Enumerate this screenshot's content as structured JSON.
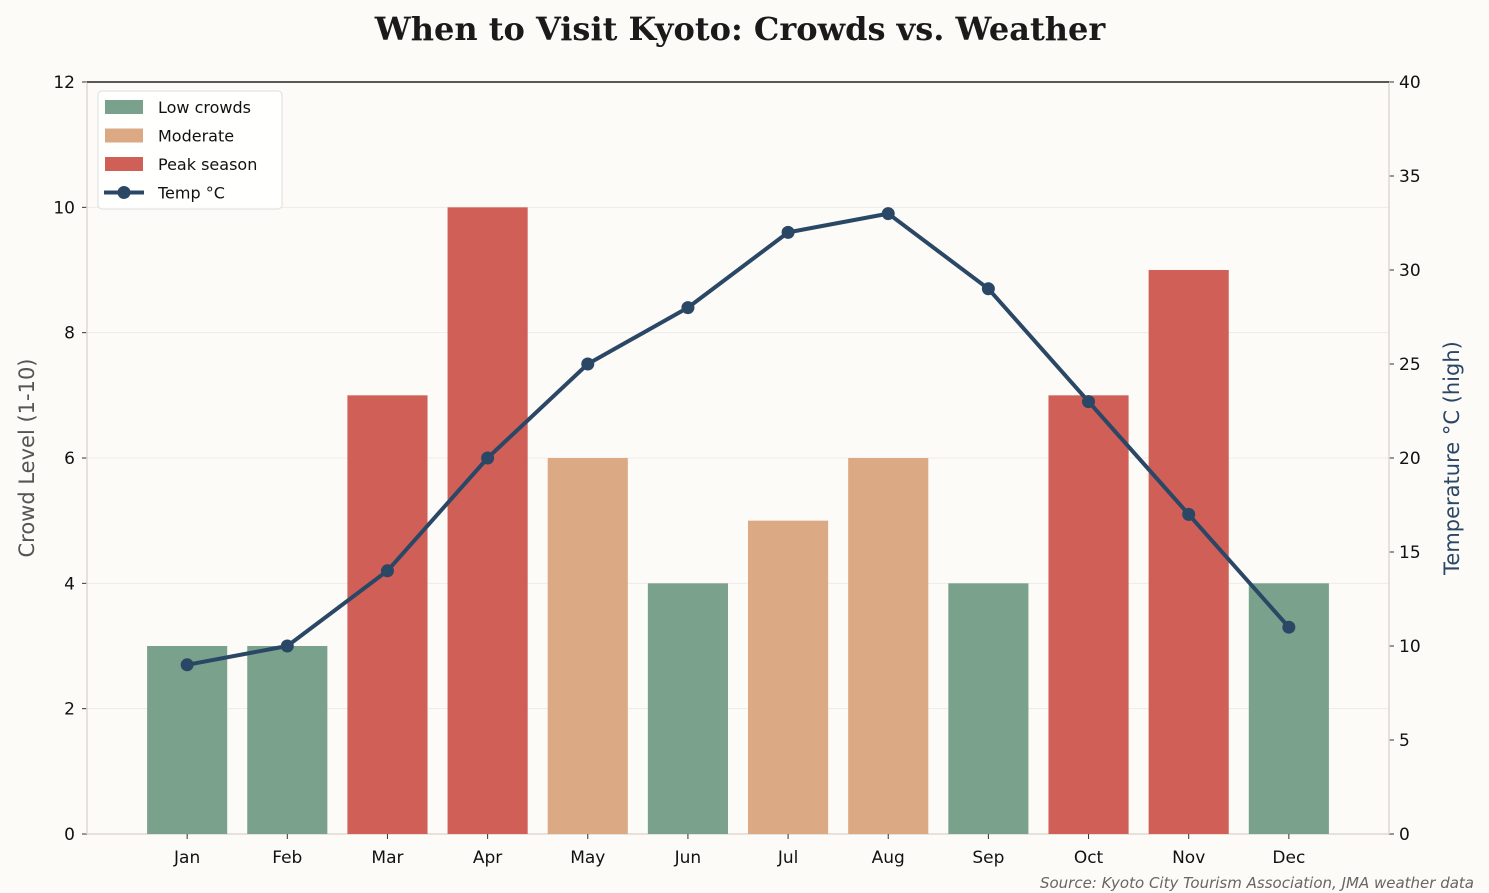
{
  "chart_data": {
    "type": "bar+line",
    "title": "When to Visit Kyoto: Crowds vs. Weather",
    "categories": [
      "Jan",
      "Feb",
      "Mar",
      "Apr",
      "May",
      "Jun",
      "Jul",
      "Aug",
      "Sep",
      "Oct",
      "Nov",
      "Dec"
    ],
    "crowd_levels": [
      3,
      3,
      7,
      10,
      6,
      4,
      5,
      6,
      4,
      7,
      9,
      4
    ],
    "crowd_category": [
      "Low crowds",
      "Low crowds",
      "Peak season",
      "Peak season",
      "Moderate",
      "Low crowds",
      "Moderate",
      "Moderate",
      "Low crowds",
      "Peak season",
      "Peak season",
      "Low crowds"
    ],
    "temperature": {
      "name": "Temp °C",
      "values": [
        9,
        10,
        14,
        20,
        25,
        28,
        32,
        33,
        29,
        23,
        17,
        11
      ]
    },
    "ylabel": "Crowd Level (1-10)",
    "y2label": "Temperature °C (high)",
    "ylim": [
      0,
      12
    ],
    "y2lim": [
      0,
      40
    ],
    "yticks": [
      0,
      2,
      4,
      6,
      8,
      10,
      12
    ],
    "y2ticks": [
      0,
      5,
      10,
      15,
      20,
      25,
      30,
      35,
      40
    ],
    "grid": true,
    "legend": {
      "placement": "top-left",
      "entries": [
        "Low crowds",
        "Moderate",
        "Peak season",
        "Temp °C"
      ]
    },
    "colors": {
      "Low crowds": "#7aa18b",
      "Moderate": "#dca985",
      "Peak season": "#cf5f57",
      "line": "#2a4766"
    },
    "source": "Source: Kyoto City Tourism Association, JMA weather data"
  }
}
